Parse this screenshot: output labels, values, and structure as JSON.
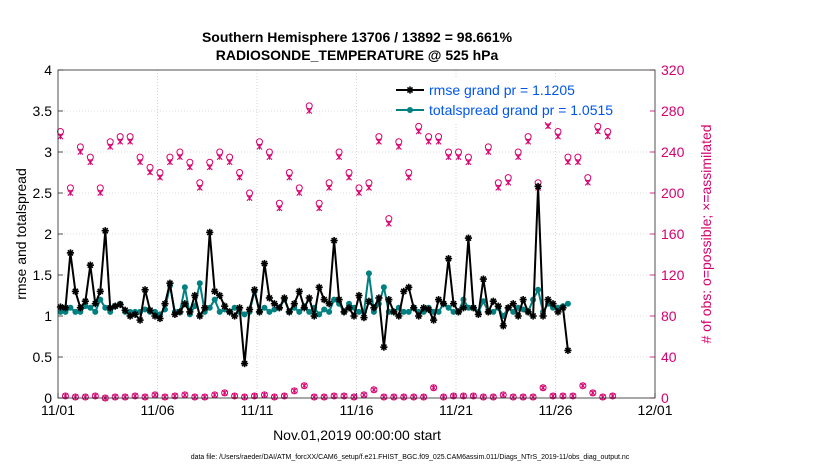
{
  "chart_data": {
    "type": "line",
    "title": "Southern Hemisphere 13706 / 13892 = 98.661%",
    "subtitle": "RADIOSONDE_TEMPERATURE @ 525 hPa",
    "xlabel": "Nov.01,2019 00:00:00 start",
    "ylabel": "rmse and totalspread",
    "y2label": "# of obs: o=possible; ×=assimilated",
    "footnote": "data file: /Users/raeder/DAI/ATM_forcXX/CAM6_setup/f.e21.FHIST_BGC.f09_025.CAM6assim.011/Diags_NTrS_2019-11/obs_diag_output.nc",
    "xlim": [
      0,
      30
    ],
    "ylim": [
      0,
      4
    ],
    "y2lim": [
      0,
      320
    ],
    "xticks": [
      0,
      5,
      10,
      15,
      20,
      25,
      30
    ],
    "xtick_labels": [
      "11/01",
      "11/06",
      "11/11",
      "11/16",
      "11/21",
      "11/26",
      "12/01"
    ],
    "yticks": [
      0,
      0.5,
      1,
      1.5,
      2,
      2.5,
      3,
      3.5,
      4
    ],
    "ytick_labels": [
      "0",
      "0.5",
      "1",
      "1.5",
      "2",
      "2.5",
      "3",
      "3.5",
      "4"
    ],
    "y2ticks": [
      0,
      40,
      80,
      120,
      160,
      200,
      240,
      280,
      320
    ],
    "y2tick_labels": [
      "0",
      "40",
      "80",
      "120",
      "160",
      "200",
      "240",
      "280",
      "320"
    ],
    "legend_position": "top-right",
    "x_step_days": 0.25,
    "colors": {
      "rmse": "#000000",
      "spread": "#008080",
      "obs": "#d6006e"
    },
    "series": [
      {
        "name": "rmse grand pr = 1.1205",
        "axis": "left",
        "values": [
          1.11,
          1.1,
          1.77,
          1.3,
          1.1,
          1.18,
          1.62,
          1.15,
          1.3,
          2.04,
          1.1,
          1.12,
          1.14,
          1.07,
          1.0,
          1.02,
          0.95,
          1.32,
          1.07,
          1.0,
          0.97,
          1.15,
          1.4,
          1.02,
          1.05,
          1.15,
          1.05,
          1.25,
          1.0,
          1.1,
          2.02,
          1.3,
          1.25,
          1.12,
          1.05,
          1.0,
          1.1,
          0.42,
          1.08,
          1.32,
          1.05,
          1.64,
          1.22,
          1.15,
          1.1,
          1.22,
          1.05,
          1.15,
          1.3,
          1.1,
          1.22,
          1.0,
          1.35,
          1.2,
          1.15,
          1.92,
          1.2,
          1.05,
          1.1,
          1.0,
          1.25,
          0.98,
          1.18,
          1.1,
          1.22,
          0.62,
          1.2,
          1.05,
          1.0,
          1.3,
          1.35,
          1.1,
          1.0,
          1.1,
          1.08,
          0.95,
          1.2,
          1.15,
          1.7,
          1.15,
          1.05,
          1.1,
          1.95,
          1.1,
          1.02,
          1.45,
          1.05,
          1.18,
          1.12,
          0.88,
          1.1,
          1.15,
          1.0,
          1.2,
          1.05,
          1.0,
          2.58,
          1.0,
          1.2,
          1.15,
          1.05,
          1.1,
          0.58
        ]
      },
      {
        "name": "totalspread grand pr = 1.0515",
        "axis": "left",
        "values": [
          1.05,
          1.05,
          1.1,
          1.05,
          1.05,
          1.12,
          1.1,
          1.05,
          1.2,
          1.1,
          1.05,
          1.12,
          1.15,
          1.05,
          1.05,
          1.05,
          1.05,
          1.08,
          1.05,
          1.05,
          1.02,
          1.08,
          1.37,
          1.05,
          1.05,
          1.35,
          1.02,
          1.12,
          1.4,
          1.05,
          1.1,
          1.2,
          1.05,
          1.08,
          1.05,
          1.1,
          1.05,
          1.02,
          1.05,
          1.3,
          1.05,
          1.1,
          1.05,
          1.08,
          1.1,
          1.2,
          1.05,
          1.1,
          1.05,
          1.12,
          1.05,
          1.1,
          1.02,
          1.08,
          1.05,
          1.2,
          1.15,
          1.05,
          1.15,
          1.1,
          1.05,
          1.05,
          1.52,
          1.05,
          1.15,
          1.35,
          1.05,
          1.05,
          1.1,
          1.05,
          1.05,
          1.1,
          1.05,
          1.05,
          1.1,
          1.05,
          1.05,
          1.15,
          1.1,
          1.05,
          1.05,
          1.2,
          1.1,
          1.1,
          1.05,
          1.18,
          1.05,
          1.05,
          1.1,
          1.0,
          1.1,
          1.05,
          1.1,
          1.08,
          1.05,
          1.2,
          1.32,
          1.05,
          1.15,
          1.1,
          1.1,
          1.12,
          1.15
        ]
      },
      {
        "name": "possible obs (upper)",
        "axis": "right",
        "marker": "circle",
        "x_offset": 0,
        "values": [
          260,
          205,
          245,
          235,
          205,
          250,
          255,
          255,
          235,
          225,
          220,
          235,
          240,
          230,
          210,
          230,
          240,
          235,
          220,
          200,
          250,
          240,
          190,
          220,
          205,
          285,
          190,
          210,
          240,
          220,
          205,
          210,
          255,
          175,
          250,
          220,
          265,
          255,
          255,
          240,
          240,
          235,
          290,
          245,
          210,
          215,
          240,
          255,
          210,
          270,
          260,
          235,
          235,
          215,
          265,
          260
        ]
      },
      {
        "name": "assimilated obs (upper)",
        "axis": "right",
        "marker": "x",
        "x_offset": 0,
        "values": [
          255,
          200,
          240,
          230,
          200,
          245,
          250,
          250,
          230,
          220,
          215,
          230,
          235,
          225,
          205,
          225,
          235,
          230,
          215,
          195,
          245,
          235,
          185,
          215,
          200,
          280,
          185,
          205,
          235,
          215,
          200,
          205,
          250,
          170,
          245,
          215,
          260,
          250,
          250,
          235,
          235,
          230,
          285,
          240,
          205,
          210,
          235,
          250,
          205,
          265,
          255,
          230,
          230,
          210,
          260,
          255
        ]
      },
      {
        "name": "possible obs (lower)",
        "axis": "right",
        "marker": "circle",
        "x_offset": 0.25,
        "values": [
          2,
          1,
          1,
          2,
          0,
          1,
          1,
          2,
          1,
          3,
          1,
          2,
          3,
          1,
          1,
          3,
          5,
          2,
          1,
          2,
          3,
          1,
          2,
          7,
          12,
          1,
          1,
          2,
          2,
          1,
          3,
          8,
          1,
          1,
          1,
          1,
          1,
          10,
          1,
          2,
          2,
          2,
          1,
          1,
          3,
          1,
          1,
          1,
          10,
          2,
          2,
          2,
          12,
          5,
          1,
          2
        ]
      },
      {
        "name": "assimilated obs (lower)",
        "axis": "right",
        "marker": "x",
        "x_offset": 0.25,
        "values": [
          2,
          1,
          1,
          2,
          0,
          1,
          1,
          2,
          1,
          3,
          1,
          2,
          3,
          1,
          1,
          3,
          5,
          2,
          1,
          2,
          3,
          1,
          2,
          7,
          12,
          1,
          1,
          2,
          2,
          1,
          3,
          8,
          1,
          1,
          1,
          1,
          1,
          10,
          1,
          2,
          2,
          2,
          1,
          1,
          3,
          1,
          1,
          1,
          10,
          2,
          2,
          2,
          12,
          5,
          1,
          2
        ]
      }
    ]
  }
}
